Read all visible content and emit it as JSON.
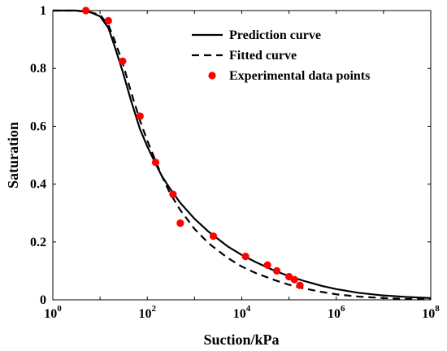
{
  "chart_data": {
    "type": "line",
    "xlabel": "Suction/kPa",
    "ylabel": "Saturation",
    "xscale": "log",
    "xlim": [
      1,
      100000000
    ],
    "ylim": [
      0,
      1
    ],
    "x_tick_labels": [
      {
        "base": "10",
        "exp": "0",
        "value": 1
      },
      {
        "base": "10",
        "exp": "2",
        "value": 100
      },
      {
        "base": "10",
        "exp": "4",
        "value": 10000
      },
      {
        "base": "10",
        "exp": "6",
        "value": 1000000
      },
      {
        "base": "10",
        "exp": "8",
        "value": 100000000
      }
    ],
    "y_tick_labels": [
      {
        "label": "0",
        "value": 0
      },
      {
        "label": "0.2",
        "value": 0.2
      },
      {
        "label": "0.4",
        "value": 0.4
      },
      {
        "label": "0.6",
        "value": 0.6
      },
      {
        "label": "0.8",
        "value": 0.8
      },
      {
        "label": "1",
        "value": 1
      }
    ],
    "grid": false,
    "legend_position": "top-right",
    "series": [
      {
        "name": "Prediction curve",
        "style": "solid",
        "color": "#000000",
        "x": [
          1,
          3,
          6,
          10,
          15,
          20,
          30,
          45,
          70,
          100,
          150,
          200,
          300,
          500,
          1000,
          2000,
          5000,
          10000,
          20000,
          50000,
          100000,
          200000,
          500000,
          1000000,
          3000000,
          10000000,
          30000000,
          100000000
        ],
        "y": [
          1.0,
          1.0,
          0.995,
          0.98,
          0.94,
          0.88,
          0.79,
          0.69,
          0.59,
          0.53,
          0.47,
          0.43,
          0.385,
          0.335,
          0.28,
          0.235,
          0.185,
          0.155,
          0.13,
          0.1,
          0.082,
          0.066,
          0.048,
          0.037,
          0.024,
          0.015,
          0.01,
          0.006
        ]
      },
      {
        "name": "Fitted curve",
        "style": "dashed",
        "color": "#000000",
        "x": [
          1,
          3,
          6,
          10,
          15,
          20,
          30,
          45,
          70,
          100,
          150,
          200,
          300,
          500,
          1000,
          2000,
          5000,
          10000,
          20000,
          50000,
          100000,
          200000,
          500000,
          1000000,
          3000000,
          10000000,
          30000000,
          100000000
        ],
        "y": [
          1.0,
          1.0,
          0.995,
          0.985,
          0.95,
          0.9,
          0.82,
          0.72,
          0.62,
          0.55,
          0.48,
          0.43,
          0.37,
          0.31,
          0.245,
          0.195,
          0.145,
          0.115,
          0.092,
          0.068,
          0.052,
          0.04,
          0.027,
          0.019,
          0.011,
          0.006,
          0.003,
          0.002
        ]
      },
      {
        "name": "Experimental data points",
        "style": "markers",
        "color": "#ff0000",
        "x": [
          5,
          15,
          30,
          70,
          150,
          350,
          500,
          2500,
          12000,
          35000,
          55000,
          100000,
          130000,
          170000
        ],
        "y": [
          1.0,
          0.965,
          0.825,
          0.635,
          0.475,
          0.365,
          0.265,
          0.22,
          0.15,
          0.12,
          0.1,
          0.08,
          0.07,
          0.05
        ]
      }
    ]
  }
}
